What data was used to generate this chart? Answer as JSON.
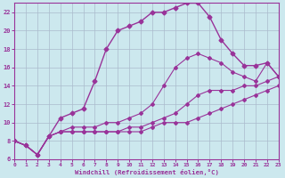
{
  "xlabel": "Windchill (Refroidissement éolien,°C)",
  "background_color": "#cce8ee",
  "grid_color": "#aabbcc",
  "line_color": "#993399",
  "spine_color": "#993399",
  "xlim": [
    0,
    23
  ],
  "ylim": [
    6,
    23
  ],
  "xticks": [
    0,
    1,
    2,
    3,
    4,
    5,
    6,
    7,
    8,
    9,
    10,
    11,
    12,
    13,
    14,
    15,
    16,
    17,
    18,
    19,
    20,
    21,
    22,
    23
  ],
  "yticks": [
    6,
    8,
    10,
    12,
    14,
    16,
    18,
    20,
    22
  ],
  "curves": [
    {
      "x": [
        0,
        1,
        2,
        3,
        4,
        5,
        6,
        7,
        8,
        9,
        10,
        11,
        12,
        13,
        14,
        15,
        16,
        17,
        18,
        19,
        20,
        21,
        22,
        23
      ],
      "y": [
        8,
        7.5,
        6.5,
        8.5,
        10.5,
        11,
        11.5,
        14.5,
        18,
        20,
        20.5,
        21,
        22,
        22,
        22.5,
        23,
        23,
        21.5,
        19,
        17.5,
        16.2,
        16.2,
        16.5,
        15
      ],
      "style": "-",
      "marker": "D",
      "markersize": 2.5,
      "linewidth": 1.0
    },
    {
      "x": [
        0,
        1,
        2,
        3,
        4,
        5,
        6,
        7,
        8,
        9,
        10,
        11,
        12,
        13,
        14,
        15,
        16,
        17,
        18,
        19,
        20,
        21,
        22,
        23
      ],
      "y": [
        8,
        7.5,
        6.5,
        8.5,
        9,
        9.5,
        9.5,
        9.5,
        10,
        10,
        10.5,
        11,
        12,
        14,
        16,
        17,
        17.5,
        17,
        16.5,
        15.5,
        15,
        14.5,
        16.5,
        15
      ],
      "style": "-",
      "marker": "D",
      "markersize": 2.0,
      "linewidth": 0.8
    },
    {
      "x": [
        0,
        1,
        2,
        3,
        4,
        5,
        6,
        7,
        8,
        9,
        10,
        11,
        12,
        13,
        14,
        15,
        16,
        17,
        18,
        19,
        20,
        21,
        22,
        23
      ],
      "y": [
        8,
        7.5,
        6.5,
        8.5,
        9,
        9,
        9,
        9,
        9,
        9,
        9.5,
        9.5,
        10,
        10.5,
        11,
        12,
        13,
        13.5,
        13.5,
        13.5,
        14,
        14,
        14.5,
        15
      ],
      "style": "-",
      "marker": "D",
      "markersize": 2.0,
      "linewidth": 0.8
    },
    {
      "x": [
        0,
        1,
        2,
        3,
        4,
        5,
        6,
        7,
        8,
        9,
        10,
        11,
        12,
        13,
        14,
        15,
        16,
        17,
        18,
        19,
        20,
        21,
        22,
        23
      ],
      "y": [
        8,
        7.5,
        6.5,
        8.5,
        9,
        9,
        9,
        9,
        9,
        9,
        9,
        9,
        9.5,
        10,
        10,
        10,
        10.5,
        11,
        11.5,
        12,
        12.5,
        13,
        13.5,
        14
      ],
      "style": "-",
      "marker": "D",
      "markersize": 2.0,
      "linewidth": 0.8
    }
  ]
}
